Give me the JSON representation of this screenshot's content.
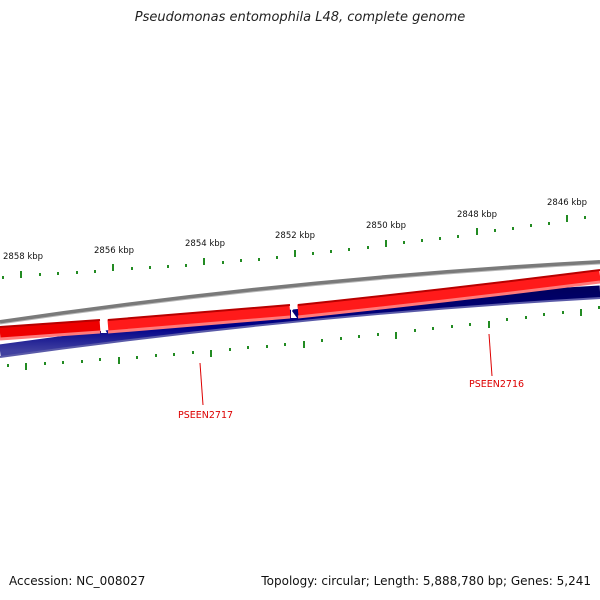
{
  "title": "Pseudomonas entomophila L48, complete genome",
  "footer": {
    "accession": "Accession: NC_008027",
    "summary": "Topology: circular; Length: 5,888,780 bp; Genes: 5,241"
  },
  "scale_labels": [
    "2858 kbp",
    "2856 kbp",
    "2854 kbp",
    "2852 kbp",
    "2850 kbp",
    "2848 kbp",
    "2846 kbp"
  ],
  "genes": [
    {
      "name": "PSEEN2717"
    },
    {
      "name": "PSEEN2716"
    }
  ],
  "colors": {
    "forward_strand": "#ee0000",
    "reverse_strand": "#000080",
    "backbone": "#808080",
    "ticks": "#228b22",
    "gene_label": "#dd0000"
  }
}
